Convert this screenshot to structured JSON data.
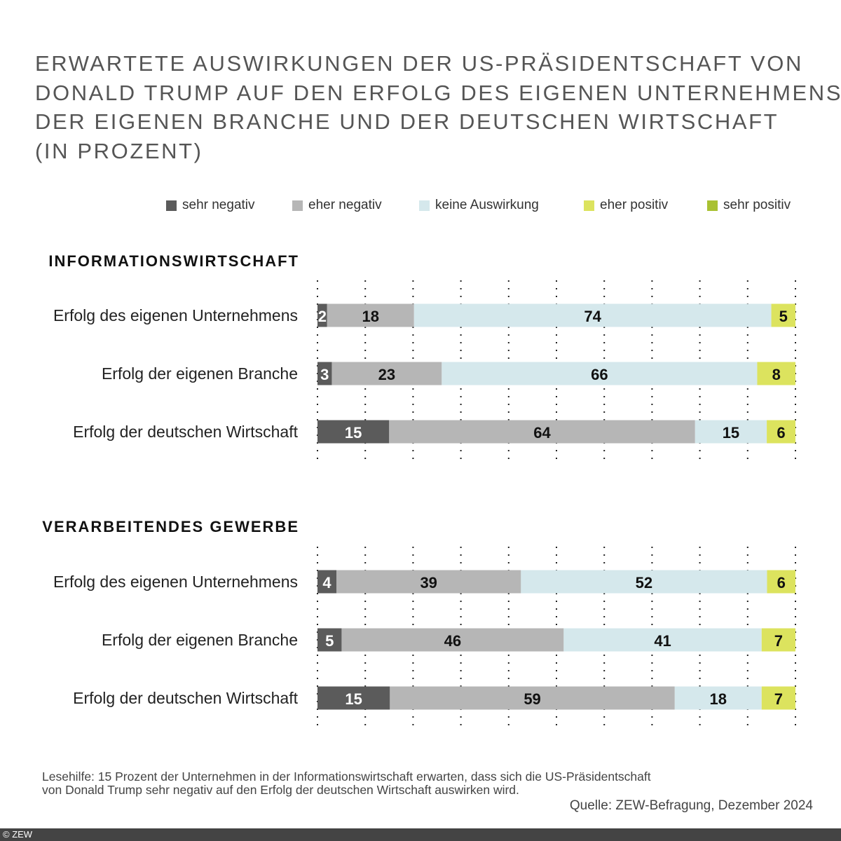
{
  "chart_data": {
    "type": "bar",
    "orientation": "horizontal-stacked",
    "title_lines": [
      "ERWARTETE AUSWIRKUNGEN DER US-PRÄSIDENTSCHAFT VON",
      "DONALD TRUMP AUF DEN ERFOLG DES EIGENEN UNTERNEHMENS,",
      "DER EIGENEN BRANCHE UND DER DEUTSCHEN WIRTSCHAFT",
      "(IN PROZENT)"
    ],
    "legend": [
      {
        "name": "sehr negativ",
        "color": "#5b5b5b"
      },
      {
        "name": "eher negativ",
        "color": "#b6b6b6"
      },
      {
        "name": "keine Auswirkung",
        "color": "#d5e8ec"
      },
      {
        "name": "eher positiv",
        "color": "#dce35e"
      },
      {
        "name": "sehr positiv",
        "color": "#a9c132"
      }
    ],
    "legend_placement": "top-right",
    "xlim": [
      0,
      100
    ],
    "grid": "vertical dotted every 10",
    "groups": [
      {
        "title": "INFORMATIONSWIRTSCHAFT",
        "rows": [
          {
            "label": "Erfolg des eigenen Unternehmens",
            "values": [
              2,
              18,
              74,
              5,
              0
            ]
          },
          {
            "label": "Erfolg der eigenen Branche",
            "values": [
              3,
              23,
              66,
              8,
              0
            ]
          },
          {
            "label": "Erfolg der deutschen Wirtschaft",
            "values": [
              15,
              64,
              15,
              6,
              0
            ]
          }
        ]
      },
      {
        "title": "VERARBEITENDES GEWERBE",
        "rows": [
          {
            "label": "Erfolg des eigenen Unternehmens",
            "values": [
              4,
              39,
              52,
              6,
              0
            ]
          },
          {
            "label": "Erfolg der eigenen Branche",
            "values": [
              5,
              46,
              41,
              7,
              0
            ]
          },
          {
            "label": "Erfolg der deutschen Wirtschaft",
            "values": [
              15,
              59,
              18,
              7,
              0
            ]
          }
        ]
      }
    ]
  },
  "footer": {
    "note_line1": "Lesehilfe: 15 Prozent der Unternehmen in der Informationswirtschaft erwarten, dass sich die US-Präsidentschaft",
    "note_line2": "von Donald Trump sehr negativ auf den Erfolg der deutschen Wirtschaft auswirken wird.",
    "source": "Quelle: ZEW-Befragung, Dezember 2024",
    "copyright": "© ZEW"
  }
}
